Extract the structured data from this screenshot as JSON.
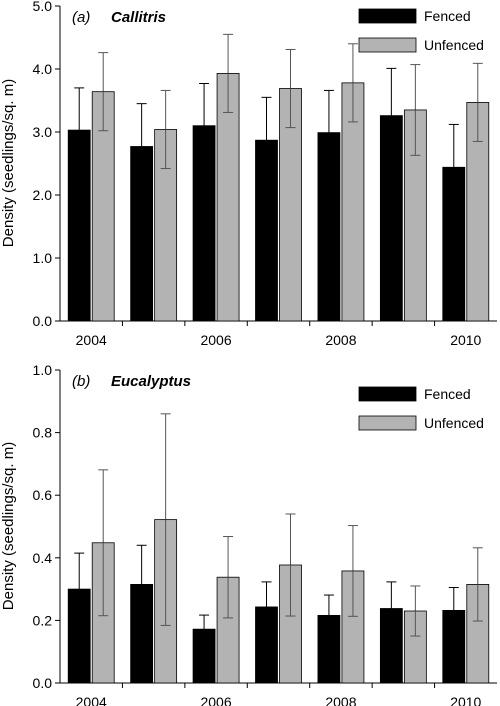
{
  "chart_data": [
    {
      "type": "bar",
      "panel_label": "(a)",
      "title": "Callitris",
      "xlabel": "",
      "ylabel": "Density (seedlings/sq. m)",
      "ylim": [
        0,
        5
      ],
      "yticks": [
        "0.0",
        "1.0",
        "2.0",
        "3.0",
        "4.0",
        "5.0"
      ],
      "categories": [
        "2004",
        "2005",
        "2006",
        "2007",
        "2008",
        "2009",
        "2010"
      ],
      "xtick_labels": [
        "2004",
        "",
        "2006",
        "",
        "2008",
        "",
        "2010"
      ],
      "legend_position": "top-right",
      "error_bars": "upper and lower",
      "series": [
        {
          "name": "Fenced",
          "color": "#000000",
          "values": [
            3.03,
            2.77,
            3.1,
            2.87,
            2.99,
            3.26,
            2.44
          ],
          "errors": [
            0.67,
            0.68,
            0.67,
            0.68,
            0.67,
            0.75,
            0.68
          ]
        },
        {
          "name": "Unfenced",
          "color": "#b3b3b3",
          "values": [
            3.64,
            3.04,
            3.93,
            3.69,
            3.78,
            3.35,
            3.47
          ],
          "errors": [
            0.62,
            0.62,
            0.62,
            0.62,
            0.62,
            0.72,
            0.62
          ]
        }
      ]
    },
    {
      "type": "bar",
      "panel_label": "(b)",
      "title": "Eucalyptus",
      "xlabel": "",
      "ylabel": "Density (seedlings/sq. m)",
      "ylim": [
        0,
        1.0
      ],
      "yticks": [
        "0.0",
        "0.2",
        "0.4",
        "0.6",
        "0.8",
        "1.0"
      ],
      "categories": [
        "2004",
        "2005",
        "2006",
        "2007",
        "2008",
        "2009",
        "2010"
      ],
      "xtick_labels": [
        "2004",
        "",
        "2006",
        "",
        "2008",
        "",
        "2010"
      ],
      "legend_position": "top-right",
      "error_bars": "upper and lower",
      "series": [
        {
          "name": "Fenced",
          "color": "#000000",
          "values": [
            0.3,
            0.315,
            0.172,
            0.243,
            0.216,
            0.238,
            0.232
          ],
          "errors": [
            0.115,
            0.125,
            0.045,
            0.08,
            0.065,
            0.085,
            0.073
          ]
        },
        {
          "name": "Unfenced",
          "color": "#b3b3b3",
          "values": [
            0.448,
            0.522,
            0.338,
            0.377,
            0.358,
            0.23,
            0.315
          ],
          "errors": [
            0.233,
            0.338,
            0.13,
            0.163,
            0.145,
            0.08,
            0.117
          ]
        }
      ]
    }
  ]
}
